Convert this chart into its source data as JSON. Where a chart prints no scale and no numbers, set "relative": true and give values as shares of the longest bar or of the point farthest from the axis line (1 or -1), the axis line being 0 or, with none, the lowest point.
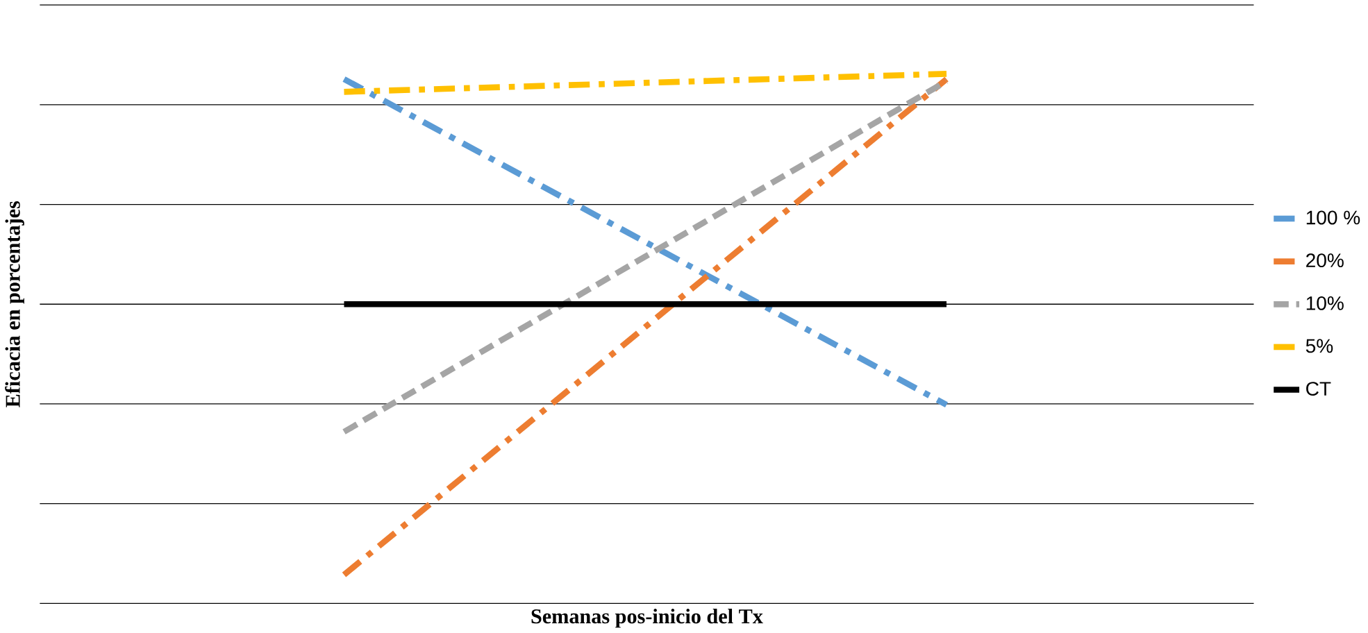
{
  "chart_data": {
    "type": "line",
    "relative": true,
    "xlabel": "Semanas pos-inicio del Tx",
    "ylabel": "Eficacia en porcentajes",
    "categories": [
      null,
      null
    ],
    "grid": "y",
    "legend": "right",
    "marker": "none",
    "series": [
      {
        "name": "100 %",
        "color": "#5b9bd5",
        "line_style": "dashdot",
        "values": [
          0.99,
          0.375
        ]
      },
      {
        "name": "20%",
        "color": "#ed7d31",
        "line_style": "dashdot",
        "values": [
          0.054,
          0.99
        ]
      },
      {
        "name": "10%",
        "color": "#a5a5a5",
        "line_style": "dashed",
        "values": [
          0.324,
          0.986
        ]
      },
      {
        "name": "5%",
        "color": "#ffc000",
        "line_style": "dashdot",
        "values": [
          0.966,
          1.0
        ]
      },
      {
        "name": "CT",
        "color": "#000000",
        "line_style": "solid",
        "values": [
          0.565,
          0.565
        ]
      }
    ]
  }
}
